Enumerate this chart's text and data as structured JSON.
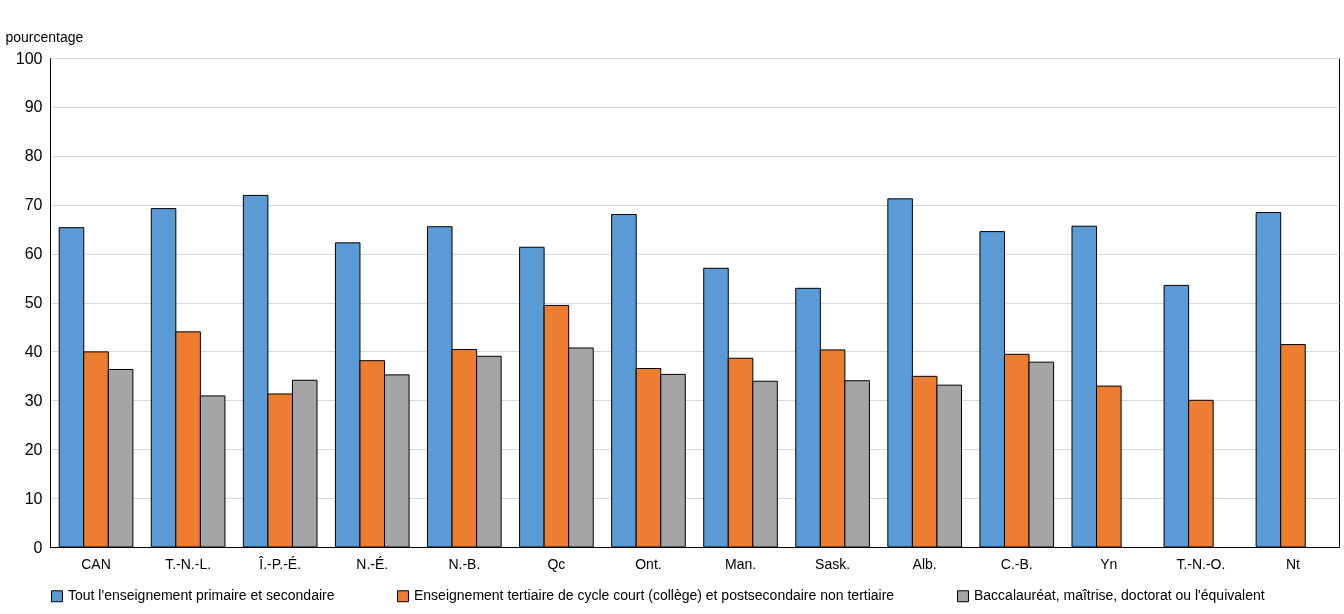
{
  "chart_data": {
    "type": "bar",
    "ylabel": "pourcentage",
    "categories": [
      "CAN",
      "T.-N.-L.",
      "Î.-P.-É.",
      "N.-É.",
      "N.-B.",
      "Qc",
      "Ont.",
      "Man.",
      "Sask.",
      "Alb.",
      "C.-B.",
      "Yn",
      "T.-N.-O.",
      "Nt"
    ],
    "series": [
      {
        "name": "Tout l'enseignement primaire et secondaire",
        "color": "#5b9bd5",
        "values": [
          65.3,
          69.2,
          71.9,
          62.2,
          65.5,
          61.3,
          68.0,
          57.0,
          52.9,
          71.2,
          64.5,
          65.6,
          53.5,
          68.4
        ]
      },
      {
        "name": "Enseignement tertiaire de cycle court (collège) et postsecondaire non tertiaire",
        "color": "#ed7d31",
        "values": [
          39.9,
          44.0,
          31.3,
          38.1,
          40.4,
          49.4,
          36.5,
          38.6,
          40.3,
          34.9,
          39.4,
          32.9,
          30.0,
          41.4
        ]
      },
      {
        "name": "Baccalauréat, maîtrise, doctorat ou l'équivalent",
        "color": "#a5a5a5",
        "values": [
          36.3,
          30.9,
          34.1,
          35.2,
          39.0,
          40.7,
          35.3,
          33.9,
          34.0,
          33.1,
          37.8,
          null,
          null,
          null
        ]
      }
    ],
    "ylim": [
      0,
      100
    ],
    "yticks": [
      0,
      10,
      20,
      30,
      40,
      50,
      60,
      70,
      80,
      90,
      100
    ],
    "grid": "y",
    "legend": "bottom"
  }
}
